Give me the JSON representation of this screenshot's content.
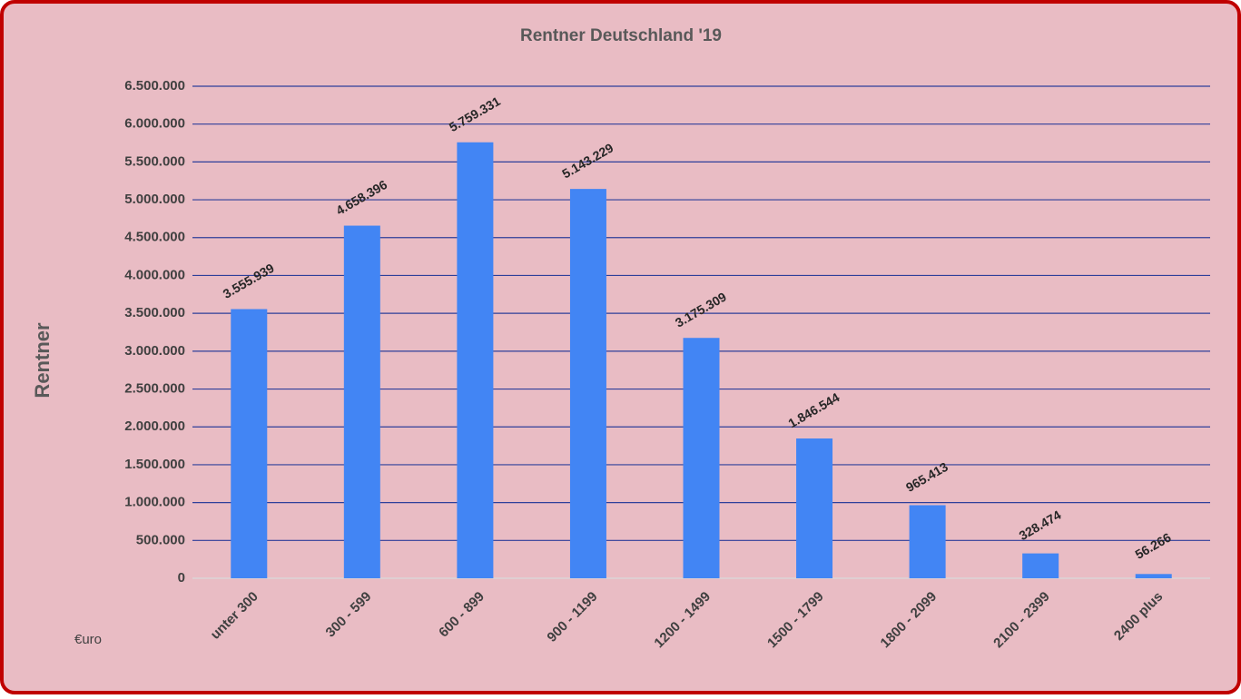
{
  "chart_data": {
    "type": "bar",
    "title": "Rentner Deutschland '19",
    "y_label": "Rentner",
    "annotation": "€uro",
    "categories": [
      "unter 300",
      "300 - 599",
      "600 - 899",
      "900 - 1199",
      "1200 - 1499",
      "1500 - 1799",
      "1800 - 2099",
      "2100 - 2399",
      "2400 plus"
    ],
    "values": [
      3555939,
      4658396,
      5759331,
      5143229,
      3175309,
      1846544,
      965413,
      328474,
      56266
    ],
    "value_labels": [
      "3.555.939",
      "4.658.396",
      "5.759.331",
      "5.143.229",
      "3.175.309",
      "1.846.544",
      "965.413",
      "328.474",
      "56.266"
    ],
    "color": "#4285f4",
    "grid": true,
    "grid_color": "#2e3f9a",
    "ylim": [
      0,
      6500000
    ],
    "yticks": [
      0,
      {
        "value": 500000,
        "label": "500.000"
      },
      {
        "value": 1000000,
        "label": "1.000.000"
      },
      {
        "value": 1500000,
        "label": "1.500.000"
      },
      {
        "value": 2000000,
        "label": "2.000.000"
      },
      {
        "value": 2500000,
        "label": "2.500.000"
      },
      {
        "value": 3000000,
        "label": "3.000.000"
      },
      {
        "value": 3500000,
        "label": "3.500.000"
      },
      {
        "value": 4000000,
        "label": "4.000.000"
      },
      {
        "value": 4500000,
        "label": "4.500.000"
      },
      {
        "value": 5000000,
        "label": "5.000.000"
      },
      {
        "value": 5500000,
        "label": "5.500.000"
      },
      {
        "value": 6000000,
        "label": "6.000.000"
      },
      {
        "value": 6500000,
        "label": "6.500.000"
      }
    ]
  }
}
